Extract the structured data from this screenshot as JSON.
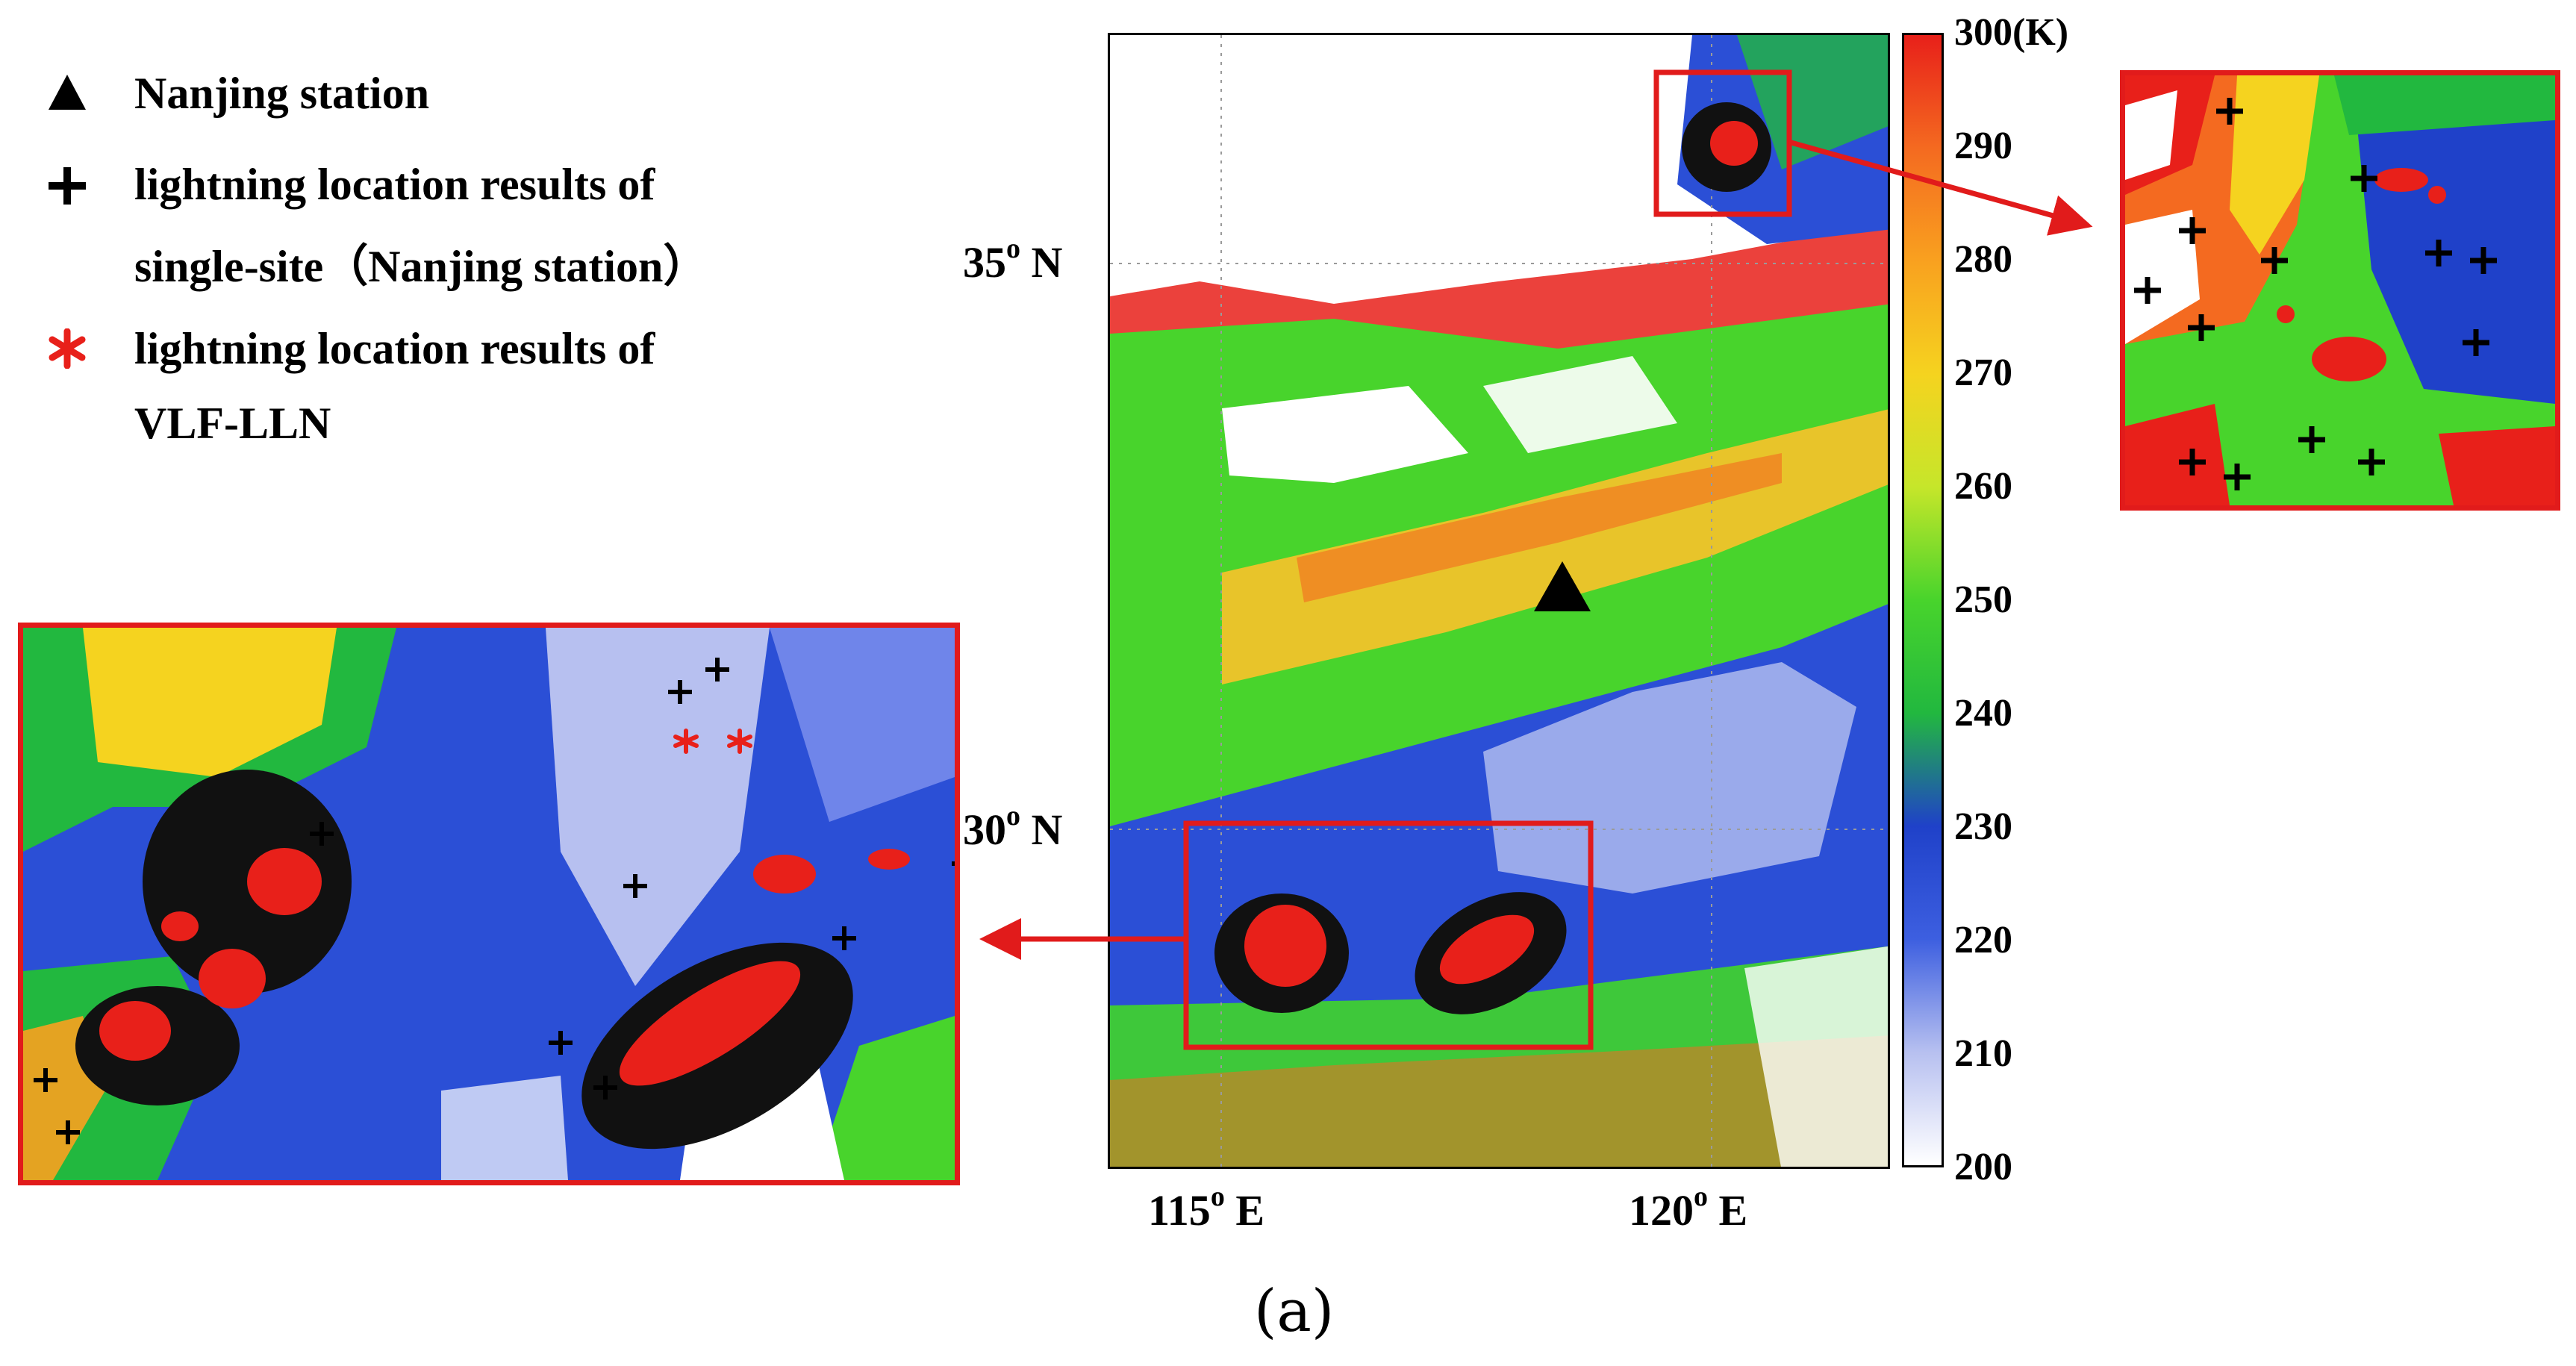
{
  "legend": {
    "station_label": "Nanjing station",
    "single_site_line1": "lightning location results of",
    "single_site_line2": "single-site（Nanjing station）",
    "vlf_line1": "lightning location results of",
    "vlf_line2": "VLF-LLN"
  },
  "map": {
    "lat_ticks": [
      {
        "deg": "35",
        "unit": "N"
      },
      {
        "deg": "30",
        "unit": "N"
      }
    ],
    "lon_ticks": [
      {
        "deg": "115",
        "unit": "E"
      },
      {
        "deg": "120",
        "unit": "E"
      }
    ],
    "degree_symbol": "o"
  },
  "colorbar": {
    "labels": [
      "300(K)",
      "290",
      "280",
      "270",
      "260",
      "250",
      "240",
      "230",
      "220",
      "210",
      "200"
    ],
    "colors": [
      "#e8201a",
      "#f46a20",
      "#f9a11f",
      "#f5d31f",
      "#c6e62a",
      "#48d42c",
      "#22b83f",
      "#1f41c9",
      "#3d5fe0",
      "#b7c0f0",
      "#ffffff"
    ]
  },
  "caption": "(a)"
}
